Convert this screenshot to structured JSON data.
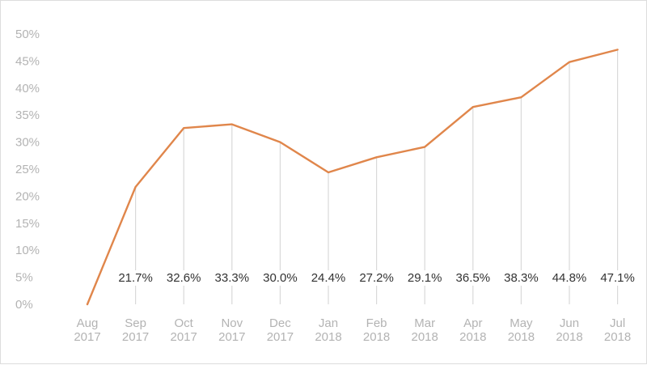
{
  "chart_data": {
    "type": "line",
    "categories": [
      [
        "Aug",
        "2017"
      ],
      [
        "Sep",
        "2017"
      ],
      [
        "Oct",
        "2017"
      ],
      [
        "Nov",
        "2017"
      ],
      [
        "Dec",
        "2017"
      ],
      [
        "Jan",
        "2018"
      ],
      [
        "Feb",
        "2018"
      ],
      [
        "Mar",
        "2018"
      ],
      [
        "Apr",
        "2018"
      ],
      [
        "May",
        "2018"
      ],
      [
        "Jun",
        "2018"
      ],
      [
        "Jul",
        "2018"
      ]
    ],
    "values": [
      0,
      21.7,
      32.6,
      33.3,
      30.0,
      24.4,
      27.2,
      29.1,
      36.5,
      38.3,
      44.8,
      47.1
    ],
    "data_labels": [
      "",
      "21.7%",
      "32.6%",
      "33.3%",
      "30.0%",
      "24.4%",
      "27.2%",
      "29.1%",
      "36.5%",
      "38.3%",
      "44.8%",
      "47.1%"
    ],
    "y_ticks": [
      0,
      5,
      10,
      15,
      20,
      25,
      30,
      35,
      40,
      45,
      50
    ],
    "y_tick_labels": [
      "0%",
      "5%",
      "10%",
      "15%",
      "20%",
      "25%",
      "30%",
      "35%",
      "40%",
      "45%",
      "50%"
    ],
    "ylim": [
      0,
      50
    ],
    "title": "",
    "xlabel": "",
    "ylabel": "",
    "grid": "vertical drop lines from each point",
    "colors": {
      "line": "#e0864b",
      "drop_line": "#d9d9d9",
      "tick_text": "#b3b3b3",
      "label_text": "#333333"
    }
  }
}
